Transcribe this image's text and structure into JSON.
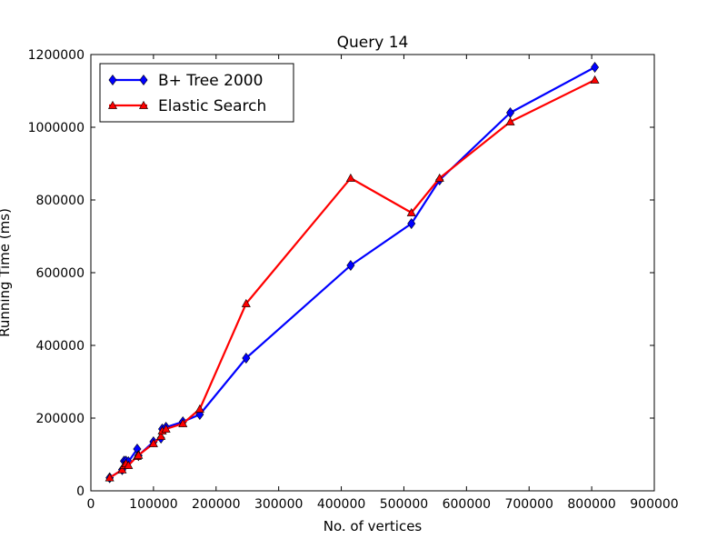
{
  "chart_data": {
    "type": "line",
    "title": "Query 14",
    "xlabel": "No. of vertices",
    "ylabel": "Running Time (ms)",
    "xlim": [
      0,
      900000
    ],
    "ylim": [
      0,
      1200000
    ],
    "xticks": [
      0,
      100000,
      200000,
      300000,
      400000,
      500000,
      600000,
      700000,
      800000,
      900000
    ],
    "yticks": [
      0,
      200000,
      400000,
      600000,
      800000,
      1000000,
      1200000
    ],
    "grid": false,
    "legend_position": "top-left",
    "series": [
      {
        "name": "B+ Tree 2000",
        "color": "#0000ff",
        "marker": "diamond",
        "x": [
          30000,
          50000,
          53000,
          56000,
          60000,
          74000,
          76000,
          100000,
          112000,
          114000,
          120000,
          147000,
          174000,
          248000,
          415000,
          512000,
          557000,
          670000,
          805000
        ],
        "y": [
          36000,
          58000,
          82000,
          82000,
          80000,
          115000,
          97000,
          135000,
          145000,
          170000,
          175000,
          190000,
          210000,
          365000,
          620000,
          735000,
          855000,
          1040000,
          1165000
        ]
      },
      {
        "name": "Elastic Search",
        "color": "#ff0000",
        "marker": "triangle",
        "x": [
          30000,
          50000,
          53000,
          56000,
          60000,
          74000,
          76000,
          100000,
          112000,
          114000,
          120000,
          147000,
          174000,
          248000,
          415000,
          512000,
          557000,
          670000,
          805000
        ],
        "y": [
          36000,
          58000,
          70000,
          75000,
          70000,
          95000,
          98000,
          130000,
          150000,
          165000,
          170000,
          185000,
          225000,
          515000,
          860000,
          765000,
          860000,
          1015000,
          1130000
        ]
      }
    ]
  }
}
